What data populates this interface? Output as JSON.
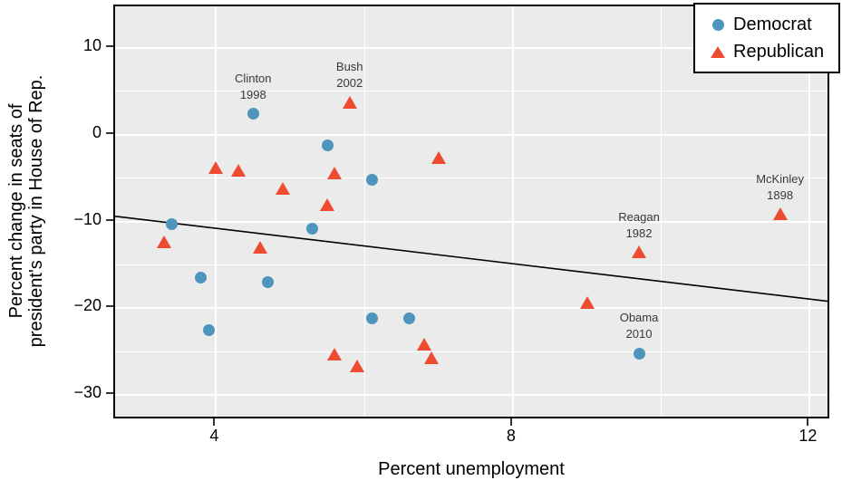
{
  "figure": {
    "panel_bg": "#ebebeb",
    "grid_color": "#ffffff",
    "border_color": "#000000"
  },
  "chart_data": {
    "type": "scatter",
    "title": "",
    "xlabel": "Percent unemployment",
    "ylabel_lines": [
      "Percent change in seats of",
      "president's party in House of Rep."
    ],
    "xlim": [
      2.64,
      12.24
    ],
    "ylim": [
      -32.5,
      14.8
    ],
    "grid": true,
    "x_major_ticks": [
      4,
      8,
      12
    ],
    "x_minor_ticks": [
      6,
      10
    ],
    "x_tick_labels": [
      "4",
      "8",
      "12"
    ],
    "y_major_ticks": [
      10,
      0,
      -10,
      -20,
      -30
    ],
    "y_minor_ticks": [
      5,
      -5,
      -15,
      -25
    ],
    "y_tick_labels": [
      "10",
      "0",
      "−10",
      "−20",
      "−30"
    ],
    "series": [
      {
        "name": "Democrat",
        "marker": "circle",
        "color": "#4e95bd",
        "points": [
          [
            3.4,
            -10.3
          ],
          [
            3.8,
            -16.5
          ],
          [
            3.9,
            -22.5
          ],
          [
            4.5,
            2.4
          ],
          [
            4.7,
            -17.0
          ],
          [
            5.3,
            -10.8
          ],
          [
            5.5,
            -1.2
          ],
          [
            6.1,
            -5.2
          ],
          [
            6.1,
            -21.2
          ],
          [
            6.6,
            -21.2
          ],
          [
            9.7,
            -25.2
          ]
        ]
      },
      {
        "name": "Republican",
        "marker": "triangle",
        "color": "#ee4b31",
        "points": [
          [
            3.3,
            -12.4
          ],
          [
            4.0,
            -3.8
          ],
          [
            4.3,
            -4.2
          ],
          [
            4.6,
            -13.0
          ],
          [
            4.9,
            -6.2
          ],
          [
            5.5,
            -8.1
          ],
          [
            5.6,
            -4.5
          ],
          [
            5.6,
            -25.3
          ],
          [
            5.8,
            3.7
          ],
          [
            5.9,
            -26.7
          ],
          [
            6.8,
            -24.2
          ],
          [
            6.9,
            -25.8
          ],
          [
            7.0,
            -2.7
          ],
          [
            9.0,
            -19.4
          ],
          [
            9.7,
            -13.6
          ],
          [
            11.6,
            -9.2
          ]
        ]
      }
    ],
    "annotations": [
      {
        "lines": [
          "Clinton",
          "1998"
        ],
        "x": 4.5,
        "y": 2.4
      },
      {
        "lines": [
          "Bush",
          "2002"
        ],
        "x": 5.8,
        "y": 3.7
      },
      {
        "lines": [
          "McKinley",
          "1898"
        ],
        "x": 11.6,
        "y": -9.2
      },
      {
        "lines": [
          "Reagan",
          "1982"
        ],
        "x": 9.7,
        "y": -13.6
      },
      {
        "lines": [
          "Obama",
          "2010"
        ],
        "x": 9.7,
        "y": -25.2
      }
    ],
    "trend_line": {
      "slope": -1.02,
      "intercept": -6.71,
      "color": "#000000"
    },
    "legend": {
      "position": "top-right",
      "items": [
        {
          "label": "Democrat",
          "marker": "circle",
          "color": "#4e95bd"
        },
        {
          "label": "Republican",
          "marker": "triangle",
          "color": "#ee4b31"
        }
      ]
    }
  }
}
